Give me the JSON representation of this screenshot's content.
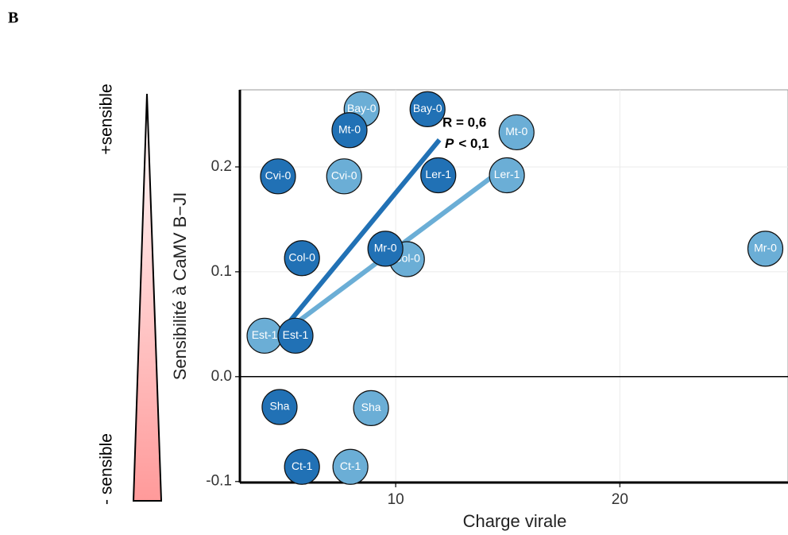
{
  "panel_label": "B",
  "side_labels": {
    "top": "+sensible",
    "bottom": "- sensible"
  },
  "chart_data": {
    "type": "scatter",
    "x_label": "Charge virale",
    "y_label": "Sensibilité à CaMV B−JI",
    "xlim": [
      3.05,
      27.5
    ],
    "ylim": [
      -0.101,
      0.2735
    ],
    "xticks": [
      10,
      20
    ],
    "yticks": [
      -0.1,
      {
        "value": 0,
        "label": "0.0"
      },
      0.1,
      0.2
    ],
    "grid": true,
    "hline": 0,
    "annotation": {
      "r": "R = 0,6",
      "p_symbol": "P",
      "p_text": "< 0,1"
    },
    "series": [
      {
        "color": "#2171b5",
        "labels": [
          "Bay-0",
          "Mt-0",
          "Cvi-0",
          "Ler-1",
          "Col-0",
          "Mr-0",
          "Est-1",
          "Sha",
          "Ct-1"
        ],
        "x": [
          11.42,
          7.94,
          4.75,
          11.9,
          5.82,
          9.54,
          5.53,
          4.82,
          5.82
        ],
        "values": [
          0.255,
          0.235,
          0.191,
          0.192,
          0.113,
          0.122,
          0.039,
          -0.029,
          -0.086
        ],
        "fit_line": {
          "x": [
            5.17,
            11.95
          ],
          "y": [
            0.05,
            0.2258
          ]
        }
      },
      {
        "color": "#6baed6",
        "labels": [
          "Bay-0",
          "Mt-0",
          "Cvi-0",
          "Ler-1",
          "Col-0",
          "Mr-0",
          "Est-1",
          "Sha",
          "Ct-1"
        ],
        "x": [
          8.48,
          15.39,
          7.7,
          14.96,
          10.5,
          26.49,
          4.15,
          8.9,
          7.98
        ],
        "values": [
          0.255,
          0.233,
          0.191,
          0.192,
          0.112,
          0.122,
          0.039,
          -0.03,
          -0.086
        ],
        "fit_line": {
          "x": [
            5.39,
            14.33
          ],
          "y": [
            0.0485,
            0.191
          ]
        }
      }
    ]
  }
}
